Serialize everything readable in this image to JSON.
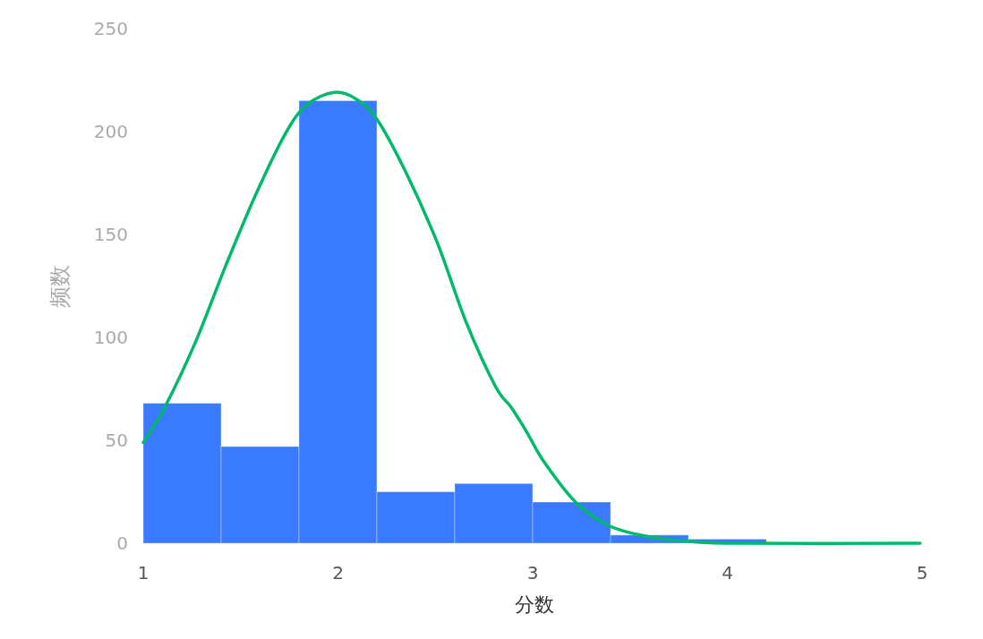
{
  "chart_data": {
    "type": "histogram",
    "xlabel": "分数",
    "ylabel": "频数",
    "bins": [
      1,
      1.4,
      1.8,
      2.2,
      2.6,
      3.0,
      3.4,
      3.8,
      4.2,
      4.6,
      5.0
    ],
    "values": [
      68,
      47,
      215,
      25,
      29,
      20,
      4,
      2,
      0,
      0
    ],
    "color": "#3a7afe",
    "series": [
      {
        "type": "line",
        "color": "#00b96b",
        "x": [
          1.0,
          1.11,
          1.265,
          1.42,
          1.576,
          1.73,
          1.84,
          1.98,
          2.09,
          2.2,
          2.35,
          2.51,
          2.66,
          2.81,
          2.89,
          2.97,
          3.055,
          3.22,
          3.38,
          3.55,
          3.79,
          4.04,
          4.99
        ],
        "values": [
          49,
          66,
          97,
          134,
          169,
          199,
          213,
          219,
          216,
          206,
          180,
          146,
          107,
          76,
          66,
          54,
          40,
          20,
          9,
          4,
          1,
          0,
          0
        ]
      }
    ],
    "xlim": [
      1,
      5
    ],
    "xticks": [
      1,
      2,
      3,
      4,
      5
    ],
    "ylim": [
      0,
      250
    ],
    "yticks": [
      0,
      50,
      100,
      150,
      200,
      250
    ],
    "grid": false
  }
}
